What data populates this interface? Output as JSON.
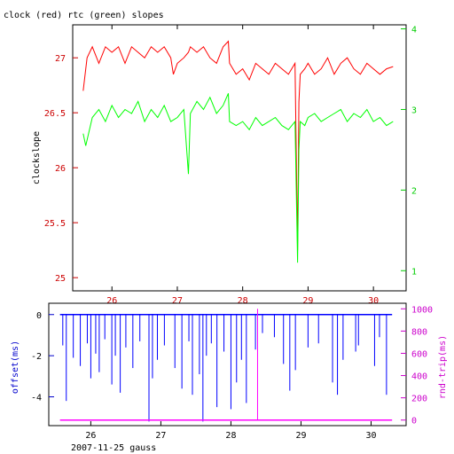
{
  "chart_data": [
    {
      "type": "line",
      "title": "clock (red) rtc (green) slopes",
      "ylabel": "clockslope",
      "xlim": [
        25.4,
        30.5
      ],
      "ylim_left": [
        24.88,
        27.3
      ],
      "ylim_right": [
        0.75,
        4.05
      ],
      "x_ticks": [
        26,
        27,
        28,
        29,
        30
      ],
      "x_tick_labels": [
        "26",
        "27",
        "28",
        "29",
        "30"
      ],
      "y_ticks_left": [
        25,
        25.5,
        26,
        26.5,
        27
      ],
      "y_tick_labels_left": [
        "25",
        "25.5",
        "26",
        "26.5",
        "27"
      ],
      "y_ticks_right": [
        1,
        2,
        3,
        4
      ],
      "y_tick_labels_right": [
        "1",
        "2",
        "3",
        "4"
      ],
      "colors": {
        "clock": "#ff0000",
        "rtc": "#00ff00",
        "axes_left": "#cc0000",
        "axes_right": "#00cc00"
      },
      "series": [
        {
          "axis": "left",
          "x": [
            25.56,
            25.62,
            25.7,
            25.8,
            25.9,
            26.0,
            26.1,
            26.2,
            26.3,
            26.4,
            26.5,
            26.6,
            26.7,
            26.8,
            26.9,
            26.94,
            27.0,
            27.1,
            27.17,
            27.2,
            27.3,
            27.4,
            27.5,
            27.6,
            27.7,
            27.78,
            27.8,
            27.9,
            28.0,
            28.1,
            28.2,
            28.3,
            28.4,
            28.5,
            28.6,
            28.7,
            28.8,
            28.84,
            28.86,
            28.88,
            28.95,
            29.0,
            29.1,
            29.2,
            29.3,
            29.4,
            29.5,
            29.6,
            29.7,
            29.8,
            29.9,
            30.0,
            30.1,
            30.2,
            30.3
          ],
          "y": [
            26.7,
            27.0,
            27.1,
            26.95,
            27.1,
            27.05,
            27.1,
            26.95,
            27.1,
            27.05,
            27.0,
            27.1,
            27.05,
            27.1,
            27.0,
            26.85,
            26.95,
            27.0,
            27.05,
            27.1,
            27.05,
            27.1,
            27.0,
            26.95,
            27.1,
            27.15,
            26.95,
            26.85,
            26.9,
            26.8,
            26.95,
            26.9,
            26.85,
            26.95,
            26.9,
            26.85,
            26.95,
            25.25,
            26.6,
            26.85,
            26.9,
            26.95,
            26.85,
            26.9,
            27.0,
            26.85,
            26.95,
            27.0,
            26.9,
            26.85,
            26.95,
            26.9,
            26.85,
            26.9,
            26.92
          ]
        },
        {
          "axis": "right",
          "x": [
            25.56,
            25.6,
            25.7,
            25.8,
            25.9,
            26.0,
            26.1,
            26.2,
            26.3,
            26.4,
            26.5,
            26.6,
            26.7,
            26.8,
            26.9,
            27.0,
            27.1,
            27.17,
            27.2,
            27.3,
            27.4,
            27.5,
            27.6,
            27.7,
            27.78,
            27.8,
            27.9,
            28.0,
            28.1,
            28.2,
            28.3,
            28.4,
            28.5,
            28.6,
            28.7,
            28.8,
            28.84,
            28.86,
            28.88,
            28.95,
            29.0,
            29.1,
            29.2,
            29.3,
            29.4,
            29.5,
            29.6,
            29.7,
            29.8,
            29.9,
            30.0,
            30.1,
            30.2,
            30.3
          ],
          "y": [
            2.7,
            2.55,
            2.9,
            3.0,
            2.85,
            3.05,
            2.9,
            3.0,
            2.95,
            3.1,
            2.85,
            3.0,
            2.9,
            3.05,
            2.85,
            2.9,
            3.0,
            2.2,
            2.95,
            3.1,
            3.0,
            3.15,
            2.95,
            3.05,
            3.2,
            2.85,
            2.8,
            2.85,
            2.75,
            2.9,
            2.8,
            2.85,
            2.9,
            2.8,
            2.75,
            2.85,
            1.1,
            2.5,
            2.85,
            2.8,
            2.9,
            2.95,
            2.85,
            2.9,
            2.95,
            3.0,
            2.85,
            2.95,
            2.9,
            3.0,
            2.85,
            2.9,
            2.8,
            2.85
          ]
        }
      ]
    },
    {
      "type": "line",
      "title": "",
      "ylabel_left": "offset(ms)",
      "ylabel_right": "rnd-trip(ms)",
      "xlabel": "2007-11-25 gauss",
      "xlim": [
        25.4,
        30.5
      ],
      "ylim_left": [
        -5.4,
        0.55
      ],
      "ylim_right": [
        -50,
        1050
      ],
      "x_ticks": [
        26,
        27,
        28,
        29,
        30
      ],
      "x_tick_labels": [
        "26",
        "27",
        "28",
        "29",
        "30"
      ],
      "y_ticks_left": [
        -4,
        -2,
        0
      ],
      "y_tick_labels_left": [
        "-4",
        "-2",
        "0"
      ],
      "y_ticks_right": [
        0,
        200,
        400,
        600,
        800,
        1000
      ],
      "y_tick_labels_right": [
        "0",
        "200",
        "400",
        "600",
        "800",
        "1000"
      ],
      "colors": {
        "offset": "#0000ff",
        "roundtrip": "#ff00ff",
        "axes_left": "#0000cc",
        "axes_right": "#cc00cc"
      },
      "series": [
        {
          "axis": "left",
          "baseline": 0,
          "spike_x": [
            25.6,
            25.65,
            25.75,
            25.85,
            25.95,
            26.0,
            26.07,
            26.12,
            26.2,
            26.3,
            26.35,
            26.42,
            26.5,
            26.6,
            26.7,
            26.83,
            26.88,
            26.95,
            27.05,
            27.2,
            27.3,
            27.4,
            27.45,
            27.55,
            27.6,
            27.65,
            27.72,
            27.8,
            27.9,
            28.0,
            28.08,
            28.15,
            28.22,
            28.35,
            28.45,
            28.62,
            28.75,
            28.84,
            28.92,
            29.1,
            29.25,
            29.45,
            29.52,
            29.6,
            29.78,
            29.82,
            30.05,
            30.12,
            30.22
          ],
          "spike_y": [
            -1.5,
            -4.2,
            -2.1,
            -2.5,
            -1.4,
            -3.1,
            -1.9,
            -2.8,
            -1.2,
            -3.4,
            -2.0,
            -3.8,
            -1.6,
            -2.6,
            -1.3,
            -5.2,
            -3.1,
            -2.2,
            -1.5,
            -2.6,
            -3.6,
            -1.3,
            -3.9,
            -2.9,
            -5.2,
            -2.0,
            -1.4,
            -4.5,
            -1.8,
            -4.6,
            -3.3,
            -2.2,
            -4.3,
            -1.7,
            -0.9,
            -1.1,
            -2.4,
            -3.7,
            -2.7,
            -1.6,
            -1.4,
            -3.3,
            -3.9,
            -2.2,
            -1.8,
            -1.5,
            -2.5,
            -1.1,
            -3.9
          ]
        },
        {
          "axis": "right",
          "baseline": 0,
          "spike_x": [
            28.38
          ],
          "spike_y": [
            1000
          ]
        }
      ]
    }
  ]
}
